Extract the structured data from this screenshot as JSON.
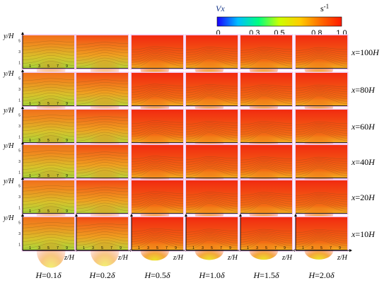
{
  "chart_data": {
    "type": "heatmap",
    "title": "",
    "colorbar": {
      "variable": "Vx",
      "unit": "s-1",
      "unit_base": "s",
      "unit_exp": "-1",
      "ticks": [
        ".0",
        "0.3",
        "0.5",
        "0.8",
        "1.0"
      ],
      "tick_values": [
        0.0,
        0.3,
        0.5,
        0.8,
        1.0
      ],
      "range": [
        0.0,
        1.0
      ],
      "colors": [
        "#1a00ff",
        "#00bfff",
        "#00ff80",
        "#ccff00",
        "#ffcc00",
        "#ff6a00",
        "#ff1a00"
      ]
    },
    "rows": [
      "x=100H",
      "x=80H",
      "x=60H",
      "x=40H",
      "x=20H",
      "x=10H"
    ],
    "row_labels": [
      {
        "var": "x",
        "eq": "=100",
        "unit": "H"
      },
      {
        "var": "x",
        "eq": "=80",
        "unit": "H"
      },
      {
        "var": "x",
        "eq": "=60",
        "unit": "H"
      },
      {
        "var": "x",
        "eq": "=40",
        "unit": "H"
      },
      {
        "var": "x",
        "eq": "=20",
        "unit": "H"
      },
      {
        "var": "x",
        "eq": "=10",
        "unit": "H"
      }
    ],
    "columns": [
      "H=0.1δ",
      "H=0.2δ",
      "H=0.5δ",
      "H=1.0δ",
      "H=1.5δ",
      "H=2.0δ"
    ],
    "col_labels": [
      {
        "var": "H",
        "eq": "=0.1",
        "unit": "δ"
      },
      {
        "var": "H",
        "eq": "=0.2",
        "unit": "δ"
      },
      {
        "var": "H",
        "eq": "=0.5",
        "unit": "δ"
      },
      {
        "var": "H",
        "eq": "=1.0",
        "unit": "δ"
      },
      {
        "var": "H",
        "eq": "=1.5",
        "unit": "δ"
      },
      {
        "var": "H",
        "eq": "=2.0",
        "unit": "δ"
      }
    ],
    "xlabel": "z/H",
    "ylabel": "y/H",
    "xticks": [
      1,
      3,
      5,
      7,
      9
    ],
    "yticks": [
      1,
      3,
      5
    ],
    "red_fraction": [
      [
        0.15,
        0.3,
        0.8,
        0.85,
        0.88,
        0.9
      ],
      [
        0.15,
        0.3,
        0.8,
        0.85,
        0.88,
        0.9
      ],
      [
        0.12,
        0.28,
        0.78,
        0.84,
        0.87,
        0.9
      ],
      [
        0.12,
        0.3,
        0.78,
        0.84,
        0.87,
        0.9
      ],
      [
        0.1,
        0.3,
        0.8,
        0.85,
        0.88,
        0.9
      ],
      [
        0.1,
        0.25,
        0.82,
        0.88,
        0.9,
        0.92
      ]
    ]
  }
}
